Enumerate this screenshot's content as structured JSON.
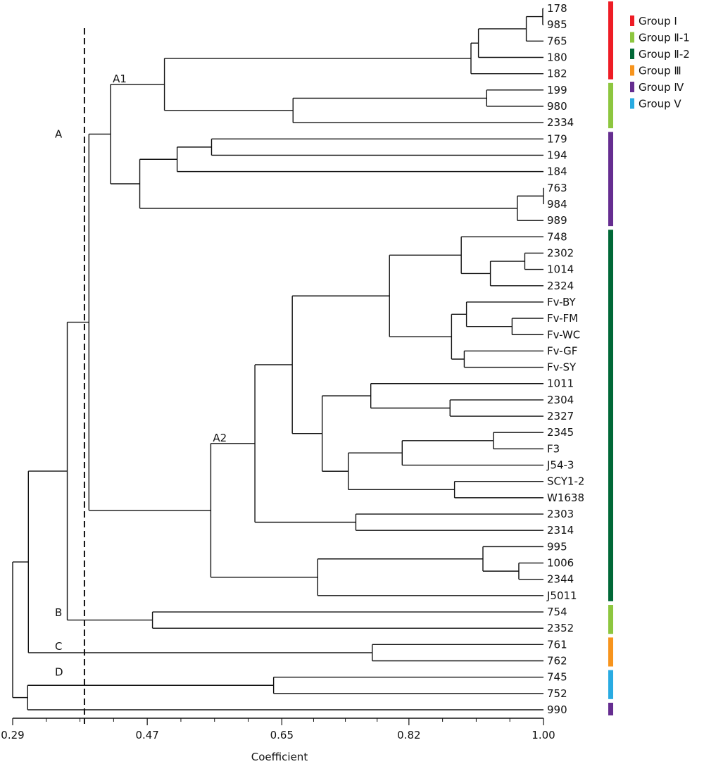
{
  "chart_data": {
    "type": "dendrogram",
    "title": "",
    "xlabel": "Coefficient",
    "ylabel": "",
    "xlim": [
      0.29,
      1.0
    ],
    "x_ticks": [
      0.29,
      0.47,
      0.65,
      0.82,
      1.0
    ],
    "x_tick_labels": [
      "0.29",
      "0.47",
      "0.65",
      "0.82",
      "1.00"
    ],
    "minor_ticks_between_labels": 3,
    "cut_line": {
      "value": 0.386,
      "style": "dashed"
    },
    "leaves": [
      "178",
      "985",
      "765",
      "180",
      "182",
      "199",
      "980",
      "2334",
      "179",
      "194",
      "184",
      "763",
      "984",
      "989",
      "748",
      "2302",
      "1014",
      "2324",
      "Fv-BY",
      "Fv-FM",
      "Fv-WC",
      "Fv-GF",
      "Fv-SY",
      "1011",
      "2304",
      "2327",
      "2345",
      "F3",
      "J54-3",
      "SCY1-2",
      "W1638",
      "2303",
      "2314",
      "995",
      "1006",
      "2344",
      "J5011",
      "754",
      "2352",
      "761",
      "762",
      "745",
      "752",
      "990"
    ],
    "tree": {
      "h": 0.29,
      "children": [
        {
          "h": 0.311,
          "children": [
            {
              "h": 0.363,
              "children": [
                {
                  "h": 0.392,
                  "label": "A",
                  "children": [
                    {
                      "h": 0.421,
                      "label": "A1",
                      "children": [
                        {
                          "h": 0.493,
                          "children": [
                            {
                              "h": 0.903,
                              "children": [
                                {
                                  "h": 0.913,
                                  "children": [
                                    {
                                      "h": 0.977,
                                      "children": [
                                        {
                                          "h": 0.999,
                                          "children": [
                                            {
                                              "leaf": "178"
                                            },
                                            {
                                              "leaf": "985"
                                            }
                                          ]
                                        },
                                        {
                                          "leaf": "765"
                                        }
                                      ]
                                    },
                                    {
                                      "leaf": "180"
                                    }
                                  ]
                                },
                                {
                                  "leaf": "182"
                                }
                              ]
                            },
                            {
                              "h": 0.665,
                              "children": [
                                {
                                  "h": 0.924,
                                  "children": [
                                    {
                                      "leaf": "199"
                                    },
                                    {
                                      "leaf": "980"
                                    }
                                  ]
                                },
                                {
                                  "leaf": "2334"
                                }
                              ]
                            }
                          ]
                        },
                        {
                          "h": 0.46,
                          "children": [
                            {
                              "h": 0.51,
                              "children": [
                                {
                                  "h": 0.556,
                                  "children": [
                                    {
                                      "leaf": "179"
                                    },
                                    {
                                      "leaf": "194"
                                    }
                                  ]
                                },
                                {
                                  "leaf": "184"
                                }
                              ]
                            },
                            {
                              "h": 0.965,
                              "children": [
                                {
                                  "h": 1.0,
                                  "children": [
                                    {
                                      "leaf": "763"
                                    },
                                    {
                                      "leaf": "984"
                                    }
                                  ]
                                },
                                {
                                  "leaf": "989"
                                }
                              ]
                            }
                          ]
                        }
                      ]
                    },
                    {
                      "h": 0.555,
                      "label": "A2",
                      "children": [
                        {
                          "h": 0.614,
                          "children": [
                            {
                              "h": 0.664,
                              "children": [
                                {
                                  "h": 0.794,
                                  "children": [
                                    {
                                      "h": 0.89,
                                      "children": [
                                        {
                                          "leaf": "748"
                                        },
                                        {
                                          "h": 0.929,
                                          "children": [
                                            {
                                              "h": 0.975,
                                              "children": [
                                                {
                                                  "leaf": "2302"
                                                },
                                                {
                                                  "leaf": "1014"
                                                }
                                              ]
                                            },
                                            {
                                              "leaf": "2324"
                                            }
                                          ]
                                        }
                                      ]
                                    },
                                    {
                                      "h": 0.877,
                                      "children": [
                                        {
                                          "h": 0.897,
                                          "children": [
                                            {
                                              "leaf": "Fv-BY"
                                            },
                                            {
                                              "h": 0.958,
                                              "children": [
                                                {
                                                  "leaf": "Fv-FM"
                                                },
                                                {
                                                  "leaf": "Fv-WC"
                                                }
                                              ]
                                            }
                                          ]
                                        },
                                        {
                                          "h": 0.894,
                                          "children": [
                                            {
                                              "leaf": "Fv-GF"
                                            },
                                            {
                                              "leaf": "Fv-SY"
                                            }
                                          ]
                                        }
                                      ]
                                    }
                                  ]
                                },
                                {
                                  "h": 0.704,
                                  "children": [
                                    {
                                      "h": 0.769,
                                      "children": [
                                        {
                                          "leaf": "1011"
                                        },
                                        {
                                          "h": 0.875,
                                          "children": [
                                            {
                                              "leaf": "2304"
                                            },
                                            {
                                              "leaf": "2327"
                                            }
                                          ]
                                        }
                                      ]
                                    },
                                    {
                                      "h": 0.739,
                                      "children": [
                                        {
                                          "h": 0.811,
                                          "children": [
                                            {
                                              "h": 0.933,
                                              "children": [
                                                {
                                                  "leaf": "2345"
                                                },
                                                {
                                                  "leaf": "F3"
                                                }
                                              ]
                                            },
                                            {
                                              "leaf": "J54-3"
                                            }
                                          ]
                                        },
                                        {
                                          "h": 0.881,
                                          "children": [
                                            {
                                              "leaf": "SCY1-2"
                                            },
                                            {
                                              "leaf": "W1638"
                                            }
                                          ]
                                        }
                                      ]
                                    }
                                  ]
                                }
                              ]
                            },
                            {
                              "h": 0.749,
                              "children": [
                                {
                                  "leaf": "2303"
                                },
                                {
                                  "leaf": "2314"
                                }
                              ]
                            }
                          ]
                        },
                        {
                          "h": 0.698,
                          "children": [
                            {
                              "h": 0.919,
                              "children": [
                                {
                                  "leaf": "995"
                                },
                                {
                                  "h": 0.967,
                                  "children": [
                                    {
                                      "leaf": "1006"
                                    },
                                    {
                                      "leaf": "2344"
                                    }
                                  ]
                                }
                              ]
                            },
                            {
                              "leaf": "J5011"
                            }
                          ]
                        }
                      ]
                    }
                  ]
                },
                {
                  "h": 0.477,
                  "label": "B",
                  "children": [
                    {
                      "leaf": "754"
                    },
                    {
                      "leaf": "2352"
                    }
                  ]
                }
              ]
            },
            {
              "h": 0.771,
              "label": "C",
              "children": [
                {
                  "leaf": "761"
                },
                {
                  "leaf": "762"
                }
              ]
            }
          ]
        },
        {
          "h": 0.31,
          "children": [
            {
              "h": 0.639,
              "label": "D",
              "children": [
                {
                  "leaf": "745"
                },
                {
                  "leaf": "752"
                }
              ]
            },
            {
              "leaf": "990"
            }
          ]
        }
      ]
    },
    "group_bars": [
      {
        "group": "Group Ⅰ",
        "from": "178",
        "to": "182",
        "color": "#ee1c25"
      },
      {
        "group": "Group Ⅱ-1",
        "from": "199",
        "to": "2334",
        "color": "#8dc63f"
      },
      {
        "group": "Group Ⅳ",
        "from": "179",
        "to": "989",
        "color": "#652d90"
      },
      {
        "group": "Group Ⅱ-2",
        "from": "748",
        "to": "J5011",
        "color": "#006837"
      },
      {
        "group": "Group Ⅱ-1",
        "from": "754",
        "to": "2352",
        "color": "#8dc63f"
      },
      {
        "group": "Group Ⅲ",
        "from": "761",
        "to": "762",
        "color": "#f7941d"
      },
      {
        "group": "Group Ⅴ",
        "from": "745",
        "to": "752",
        "color": "#29abe2"
      },
      {
        "group": "Group Ⅳ",
        "from": "990",
        "to": "990",
        "color": "#652d90"
      }
    ],
    "legend": {
      "position": "top-right",
      "entries": [
        {
          "label": "Group Ⅰ",
          "color": "#ee1c25"
        },
        {
          "label": "Group Ⅱ-1",
          "color": "#8dc63f"
        },
        {
          "label": "Group Ⅱ-2",
          "color": "#006837"
        },
        {
          "label": "Group Ⅲ",
          "color": "#f7941d"
        },
        {
          "label": "Group Ⅳ",
          "color": "#652d90"
        },
        {
          "label": "Group Ⅴ",
          "color": "#29abe2"
        }
      ]
    }
  }
}
